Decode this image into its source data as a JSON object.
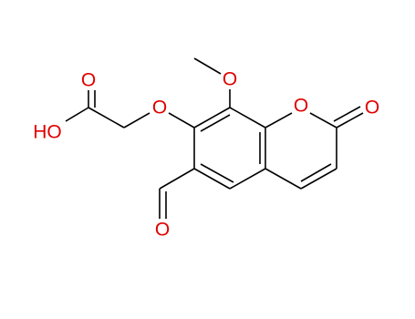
{
  "atoms": [
    {
      "label": "O"
    },
    {
      "label": "O"
    },
    {
      "label": "O"
    },
    {
      "label": "O"
    },
    {
      "label": "HO"
    },
    {
      "label": "O"
    },
    {
      "label": "O"
    }
  ]
}
